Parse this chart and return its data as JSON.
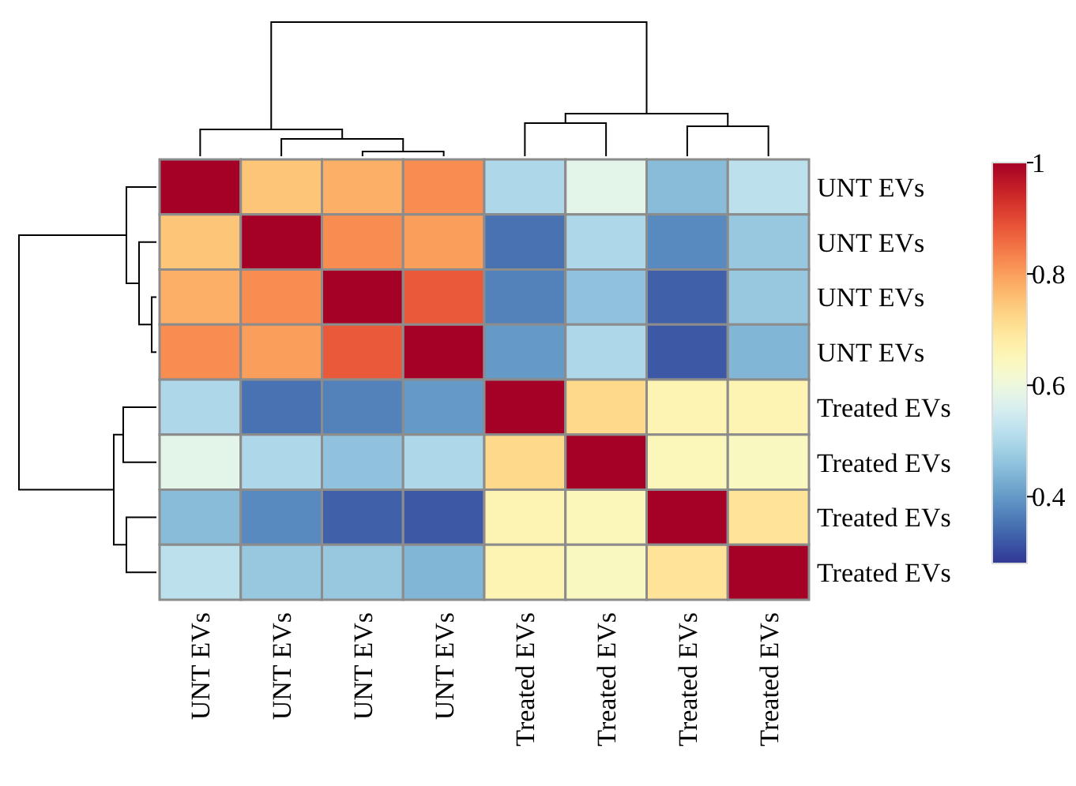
{
  "chart_data": {
    "type": "heatmap",
    "categories": [
      "UNT EVs",
      "UNT EVs",
      "UNT EVs",
      "UNT EVs",
      "Treated EVs",
      "Treated EVs",
      "Treated EVs",
      "Treated EVs"
    ],
    "y_categories": [
      "UNT EVs",
      "UNT EVs",
      "UNT EVs",
      "UNT EVs",
      "Treated EVs",
      "Treated EVs",
      "Treated EVs",
      "Treated EVs"
    ],
    "cells": [
      [
        1,
        0.75,
        0.78,
        0.82,
        0.5,
        0.58,
        0.45,
        0.52
      ],
      [
        0.75,
        1,
        0.82,
        0.8,
        0.35,
        0.5,
        0.38,
        0.47
      ],
      [
        0.78,
        0.82,
        1,
        0.88,
        0.37,
        0.46,
        0.33,
        0.47
      ],
      [
        0.82,
        0.8,
        0.88,
        1,
        0.4,
        0.5,
        0.32,
        0.44
      ],
      [
        0.5,
        0.35,
        0.37,
        0.4,
        1,
        0.72,
        0.66,
        0.66
      ],
      [
        0.58,
        0.5,
        0.46,
        0.5,
        0.72,
        1,
        0.65,
        0.64
      ],
      [
        0.45,
        0.38,
        0.33,
        0.32,
        0.66,
        0.65,
        1,
        0.7
      ],
      [
        0.52,
        0.47,
        0.47,
        0.44,
        0.66,
        0.64,
        0.7,
        1
      ]
    ],
    "clim": [
      0.28,
      1
    ],
    "cticks": [
      0.4,
      0.6,
      0.8,
      1
    ]
  }
}
